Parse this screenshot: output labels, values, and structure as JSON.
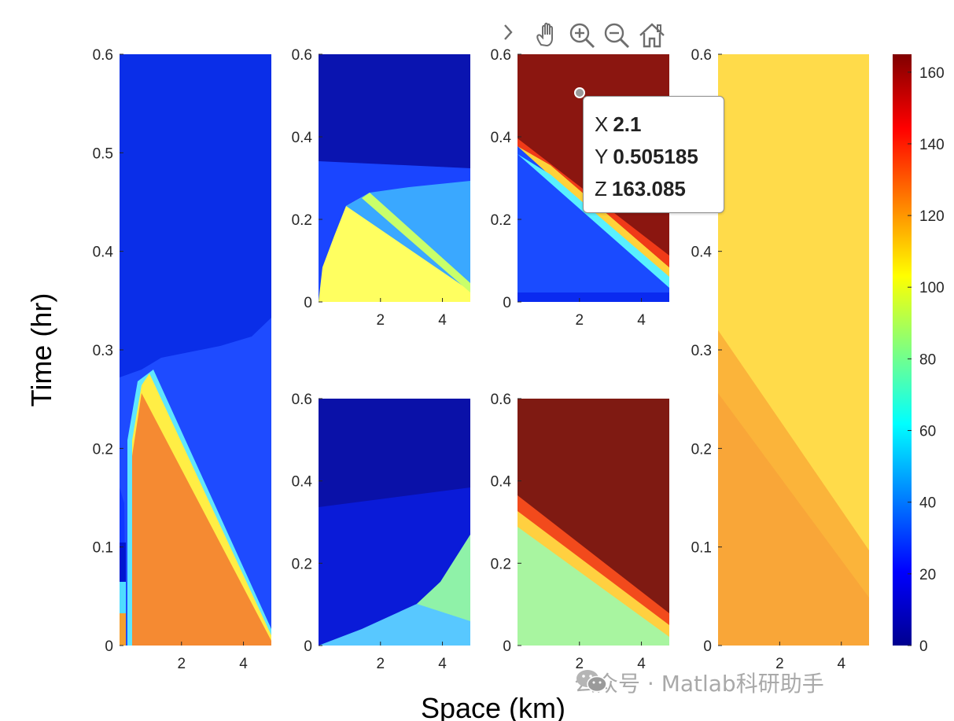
{
  "figure": {
    "xlabel": "Space (km)",
    "ylabel": "Time (hr)"
  },
  "toolbar": {
    "items": [
      {
        "name": "expand-chevron-icon"
      },
      {
        "name": "pan-hand-icon"
      },
      {
        "name": "zoom-in-icon"
      },
      {
        "name": "zoom-out-icon"
      },
      {
        "name": "home-restore-icon"
      }
    ]
  },
  "datatip": {
    "x_key": "X",
    "x_val": "2.1",
    "y_key": "Y",
    "y_val": "0.505185",
    "z_key": "Z",
    "z_val": "163.085"
  },
  "watermark": {
    "text": "公众号 · Matlab科研助手"
  },
  "chart_data": [
    {
      "type": "heatmap",
      "title": "",
      "xlabel": "Space (km)",
      "ylabel": "Time (hr)",
      "xlim": [
        0,
        4.9
      ],
      "ylim": [
        0,
        0.6
      ],
      "xticks": [
        "2",
        "4"
      ],
      "yticks": [
        "0",
        "0.1",
        "0.2",
        "0.3",
        "0.4",
        "0.5",
        "0.6"
      ],
      "colormap": "jet",
      "clim": [
        0,
        165
      ]
    },
    {
      "type": "heatmap",
      "title": "",
      "xlim": [
        0,
        4.9
      ],
      "ylim": [
        0,
        0.6
      ],
      "xticks": [
        "2",
        "4"
      ],
      "yticks": [
        "0",
        "0.2",
        "0.4",
        "0.6"
      ],
      "colormap": "jet",
      "clim": [
        0,
        165
      ]
    },
    {
      "type": "heatmap",
      "title": "",
      "xlim": [
        0,
        4.9
      ],
      "ylim": [
        0,
        0.6
      ],
      "xticks": [
        "2",
        "4"
      ],
      "yticks": [
        "0",
        "0.2",
        "0.4",
        "0.6"
      ],
      "colormap": "jet",
      "clim": [
        0,
        165
      ]
    },
    {
      "type": "heatmap",
      "title": "",
      "xlim": [
        0,
        4.9
      ],
      "ylim": [
        0,
        0.6
      ],
      "xticks": [
        "2",
        "4"
      ],
      "yticks": [
        "0",
        "0.2",
        "0.4",
        "0.6"
      ],
      "colormap": "jet",
      "clim": [
        0,
        165
      ]
    },
    {
      "type": "heatmap",
      "title": "",
      "xlim": [
        0,
        4.9
      ],
      "ylim": [
        0,
        0.6
      ],
      "xticks": [
        "2",
        "4"
      ],
      "yticks": [
        "0",
        "0.2",
        "0.4",
        "0.6"
      ],
      "colormap": "jet",
      "clim": [
        0,
        165
      ]
    },
    {
      "type": "heatmap",
      "title": "",
      "xlim": [
        0,
        4.9
      ],
      "ylim": [
        0,
        0.6
      ],
      "xticks": [
        "2",
        "4"
      ],
      "yticks": [
        "0",
        "0.1",
        "0.2",
        "0.3",
        "0.4",
        "0.5",
        "0.6"
      ],
      "colormap": "jet",
      "clim": [
        0,
        165
      ]
    }
  ],
  "colorbar": {
    "ticks": [
      "0",
      "20",
      "40",
      "60",
      "80",
      "100",
      "120",
      "140",
      "160"
    ],
    "range": [
      0,
      165
    ]
  }
}
